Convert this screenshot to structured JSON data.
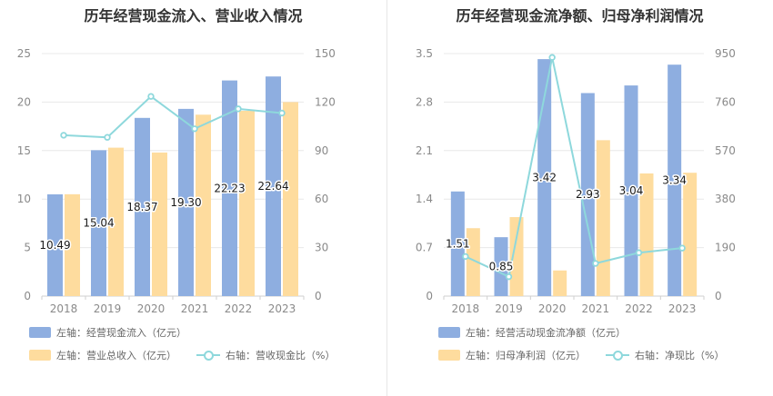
{
  "colors": {
    "bar1": "#8eaee0",
    "bar2": "#fedc9e",
    "line": "#8ed8dc",
    "grid": "#e8e8e8",
    "axis": "#cfcfcf"
  },
  "chart_data": [
    {
      "type": "bar",
      "title": "历年经营现金流入、营业收入情况",
      "categories": [
        "2018",
        "2019",
        "2020",
        "2021",
        "2022",
        "2023"
      ],
      "left_axis": {
        "min": 0,
        "max": 25,
        "ticks": [
          "0",
          "5",
          "10",
          "15",
          "20",
          "25"
        ]
      },
      "right_axis": {
        "min": 0,
        "max": 150,
        "ticks": [
          "0",
          "30",
          "60",
          "90",
          "120",
          "150"
        ]
      },
      "series": [
        {
          "name": "左轴：经营现金流入（亿元）",
          "kind": "bar",
          "axis": "left",
          "values": [
            10.49,
            15.04,
            18.37,
            19.3,
            22.23,
            22.64
          ],
          "labels": [
            "10.49",
            "15.04",
            "18.37",
            "19.30",
            "22.23",
            "22.64"
          ]
        },
        {
          "name": "左轴：营业总收入（亿元）",
          "kind": "bar",
          "axis": "left",
          "values": [
            10.5,
            15.3,
            14.8,
            18.7,
            19.1,
            20.0
          ]
        },
        {
          "name": "右轴：营收现金比（%）",
          "kind": "line",
          "axis": "right",
          "values": [
            99.5,
            98.2,
            123.5,
            103.5,
            115.8,
            113.2
          ]
        }
      ]
    },
    {
      "type": "bar",
      "title": "历年经营现金流净额、归母净利润情况",
      "categories": [
        "2018",
        "2019",
        "2020",
        "2021",
        "2022",
        "2023"
      ],
      "left_axis": {
        "min": 0,
        "max": 3.5,
        "ticks": [
          "0",
          "0.7",
          "1.4",
          "2.1",
          "2.8",
          "3.5"
        ]
      },
      "right_axis": {
        "min": 0,
        "max": 950,
        "ticks": [
          "0",
          "190",
          "380",
          "570",
          "760",
          "950"
        ]
      },
      "series": [
        {
          "name": "左轴：经营活动现金流净额（亿元）",
          "kind": "bar",
          "axis": "left",
          "values": [
            1.51,
            0.85,
            3.42,
            2.93,
            3.04,
            3.34
          ],
          "labels": [
            "1.51",
            "0.85",
            "3.42",
            "2.93",
            "3.04",
            "3.34"
          ]
        },
        {
          "name": "左轴：归母净利润（亿元）",
          "kind": "bar",
          "axis": "left",
          "values": [
            0.98,
            1.14,
            0.37,
            2.25,
            1.77,
            1.78
          ]
        },
        {
          "name": "右轴：净现比（%）",
          "kind": "line",
          "axis": "right",
          "values": [
            155,
            76,
            935,
            128,
            170,
            188
          ]
        }
      ]
    }
  ]
}
